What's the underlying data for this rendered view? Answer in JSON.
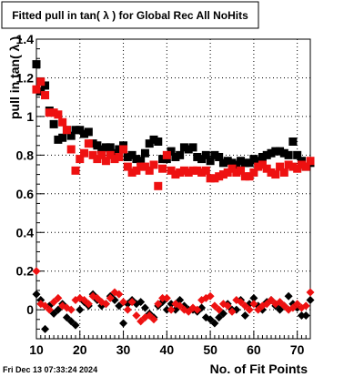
{
  "chart_data": {
    "type": "scatter",
    "title": "Fitted pull in tan( λ ) for Global Rec All NoHits",
    "xlabel": "No. of Fit Points",
    "ylabel": "pull in tan( λ )",
    "footer": "Fri Dec 13 07:33:24 2024",
    "xlim": [
      10,
      73
    ],
    "ylim": [
      -0.15,
      1.4
    ],
    "x_ticks": [
      10,
      20,
      30,
      40,
      50,
      60,
      70
    ],
    "x_tick_labels": [
      "10",
      "20",
      "30",
      "40",
      "50",
      "60",
      "70"
    ],
    "y_ticks": [
      0,
      0.2,
      0.4,
      0.6,
      0.8,
      1.0,
      1.2,
      1.4
    ],
    "y_tick_labels": [
      "0",
      "0.2",
      "0.4",
      "0.6",
      "0.8",
      "1",
      "1.2",
      "1.4"
    ],
    "grid": true,
    "colors": {
      "series_black": "#000000",
      "series_red": "#ee1111",
      "grid": "#000000"
    },
    "series": [
      {
        "color": "#000000",
        "marker": "square",
        "x": [
          10,
          11,
          12,
          13,
          14,
          15,
          16,
          17,
          18,
          19,
          20,
          21,
          22,
          23,
          24,
          25,
          26,
          27,
          28,
          29,
          30,
          31,
          32,
          33,
          34,
          35,
          36,
          37,
          38,
          39,
          40,
          41,
          42,
          43,
          44,
          45,
          46,
          47,
          48,
          49,
          50,
          51,
          52,
          53,
          54,
          55,
          56,
          57,
          58,
          59,
          60,
          61,
          62,
          63,
          64,
          65,
          66,
          67,
          68,
          69,
          70,
          71,
          72,
          73
        ],
        "values": [
          1.27,
          1.13,
          1.16,
          1.03,
          0.96,
          0.88,
          0.89,
          0.93,
          0.9,
          0.93,
          0.93,
          0.91,
          0.92,
          0.86,
          0.85,
          0.83,
          0.84,
          0.84,
          0.81,
          0.83,
          0.85,
          0.79,
          0.8,
          0.78,
          0.77,
          0.81,
          0.86,
          0.88,
          0.87,
          0.78,
          0.78,
          0.82,
          0.79,
          0.8,
          0.84,
          0.83,
          0.84,
          0.79,
          0.78,
          0.8,
          0.77,
          0.8,
          0.79,
          0.76,
          0.77,
          0.76,
          0.75,
          0.77,
          0.76,
          0.76,
          0.78,
          0.77,
          0.79,
          0.8,
          0.81,
          0.82,
          0.82,
          0.81,
          0.8,
          0.87,
          0.8,
          0.77,
          0.74,
          0.76
        ]
      },
      {
        "color": "#000000",
        "marker": "diamond",
        "x": [
          10,
          11,
          12,
          13,
          14,
          15,
          16,
          17,
          18,
          19,
          20,
          21,
          22,
          23,
          24,
          25,
          26,
          27,
          28,
          29,
          30,
          31,
          32,
          33,
          34,
          35,
          36,
          37,
          38,
          39,
          40,
          41,
          42,
          43,
          44,
          45,
          46,
          47,
          48,
          49,
          50,
          51,
          52,
          53,
          54,
          55,
          56,
          57,
          58,
          59,
          60,
          61,
          62,
          63,
          64,
          65,
          66,
          67,
          68,
          69,
          70,
          71,
          72,
          73
        ],
        "values": [
          0.08,
          0.05,
          -0.1,
          0.02,
          -0.02,
          0.0,
          0.03,
          -0.04,
          -0.06,
          -0.08,
          0.0,
          0.04,
          0.02,
          0.08,
          0.05,
          0.02,
          0.03,
          0.07,
          0.05,
          0.02,
          -0.07,
          0.03,
          0.05,
          0.03,
          0.04,
          0.01,
          -0.02,
          -0.04,
          0.02,
          0.04,
          0.0,
          0.03,
          0.0,
          0.05,
          0.02,
          0.0,
          0.0,
          -0.01,
          0.01,
          -0.04,
          -0.05,
          -0.07,
          -0.04,
          -0.02,
          0.03,
          0.0,
          0.0,
          0.05,
          -0.03,
          0.03,
          0.06,
          0.02,
          0.0,
          0.04,
          0.05,
          0.02,
          0.0,
          0.02,
          0.07,
          0.03,
          0.01,
          -0.03,
          -0.03,
          0.05
        ]
      },
      {
        "color": "#ee1111",
        "marker": "square",
        "x": [
          10,
          11,
          12,
          13,
          14,
          15,
          16,
          17,
          18,
          19,
          20,
          21,
          22,
          23,
          24,
          25,
          26,
          27,
          28,
          29,
          30,
          31,
          32,
          33,
          34,
          35,
          36,
          37,
          38,
          39,
          40,
          41,
          42,
          43,
          44,
          45,
          46,
          47,
          48,
          49,
          50,
          51,
          52,
          53,
          54,
          55,
          56,
          57,
          58,
          59,
          60,
          61,
          62,
          63,
          64,
          65,
          66,
          67,
          68,
          69,
          70,
          71,
          72,
          73
        ],
        "values": [
          1.14,
          1.18,
          1.11,
          1.02,
          1.02,
          1.01,
          0.97,
          0.93,
          0.83,
          0.72,
          0.78,
          0.81,
          0.86,
          0.8,
          0.78,
          0.8,
          0.77,
          0.8,
          0.78,
          0.79,
          0.83,
          0.74,
          0.71,
          0.72,
          0.74,
          0.74,
          0.72,
          0.75,
          0.64,
          0.73,
          0.8,
          0.72,
          0.7,
          0.71,
          0.72,
          0.71,
          0.72,
          0.72,
          0.71,
          0.72,
          0.68,
          0.68,
          0.69,
          0.7,
          0.71,
          0.73,
          0.71,
          0.72,
          0.69,
          0.69,
          0.71,
          0.74,
          0.75,
          0.73,
          0.71,
          0.7,
          0.74,
          0.71,
          0.75,
          0.74,
          0.73,
          0.75,
          0.74,
          0.77
        ]
      },
      {
        "color": "#ee1111",
        "marker": "diamond",
        "x": [
          10,
          11,
          12,
          13,
          14,
          15,
          16,
          17,
          18,
          19,
          20,
          21,
          22,
          23,
          24,
          25,
          26,
          27,
          28,
          29,
          30,
          31,
          32,
          33,
          34,
          35,
          36,
          37,
          38,
          39,
          40,
          41,
          42,
          43,
          44,
          45,
          46,
          47,
          48,
          49,
          50,
          51,
          52,
          53,
          54,
          55,
          56,
          57,
          58,
          59,
          60,
          61,
          62,
          63,
          64,
          65,
          66,
          67,
          68,
          69,
          70,
          71,
          72,
          73
        ],
        "values": [
          0.2,
          0.03,
          0.02,
          0.0,
          0.04,
          0.06,
          0.02,
          0.01,
          0.0,
          0.05,
          0.06,
          0.05,
          0.03,
          0.07,
          0.06,
          0.04,
          0.03,
          0.06,
          0.09,
          0.08,
          0.04,
          0.0,
          0.04,
          -0.03,
          -0.06,
          -0.04,
          -0.03,
          -0.05,
          0.03,
          0.06,
          0.06,
          0.0,
          0.03,
          0.02,
          0.0,
          -0.01,
          0.01,
          0.0,
          0.05,
          0.06,
          0.07,
          0.02,
          0.0,
          0.03,
          0.02,
          -0.01,
          0.05,
          0.04,
          0.02,
          0.0,
          0.03,
          0.0,
          0.02,
          0.03,
          0.05,
          0.03,
          0.04,
          0.02,
          0.0,
          0.01,
          0.03,
          0.01,
          0.02,
          0.09
        ]
      }
    ]
  }
}
